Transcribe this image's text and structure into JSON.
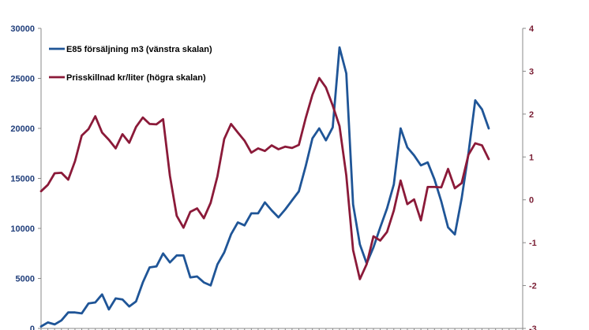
{
  "chart_data": {
    "type": "line",
    "legend_position": "top-left",
    "grid": false,
    "colors": {
      "left_series": "#1f5597",
      "right_series": "#8b1a39",
      "axis": "#888888"
    },
    "y_left": {
      "min": 0,
      "max": 30000,
      "ticks": [
        "0",
        "5000",
        "10000",
        "15000",
        "20000",
        "25000",
        "30000"
      ]
    },
    "y_right": {
      "min": -3,
      "max": 4,
      "ticks": [
        "-3",
        "-2",
        "-1",
        "0",
        "1",
        "2",
        "3",
        "4"
      ]
    },
    "x_count": 72,
    "series": [
      {
        "name": "E85 försäljning m3 (vänstra skalan)",
        "axis": "left",
        "values": [
          200,
          600,
          400,
          800,
          1600,
          1600,
          1500,
          2500,
          2600,
          3400,
          1900,
          3000,
          2900,
          2200,
          2700,
          4600,
          6100,
          6200,
          7500,
          6600,
          7300,
          7300,
          5100,
          5200,
          4600,
          4300,
          6400,
          7600,
          9400,
          10600,
          10300,
          11500,
          11500,
          12600,
          11800,
          11100,
          11900,
          12800,
          13700,
          16200,
          19000,
          20000,
          18800,
          20100,
          28100,
          25500,
          12400,
          8400,
          6500,
          8100,
          10100,
          12000,
          14400,
          20000,
          18100,
          17300,
          16300,
          16600,
          14900,
          12700,
          10100,
          9400,
          13000,
          17500,
          22800,
          21900,
          20000
        ]
      },
      {
        "name": "Prisskillnad kr/liter (högra skalan)",
        "axis": "right",
        "values": [
          0.2,
          0.35,
          0.62,
          0.63,
          0.47,
          0.9,
          1.5,
          1.65,
          1.95,
          1.57,
          1.4,
          1.2,
          1.53,
          1.33,
          1.7,
          1.92,
          1.77,
          1.76,
          1.88,
          0.56,
          -0.37,
          -0.65,
          -0.28,
          -0.2,
          -0.43,
          -0.07,
          0.55,
          1.42,
          1.77,
          1.57,
          1.38,
          1.1,
          1.2,
          1.14,
          1.27,
          1.18,
          1.24,
          1.21,
          1.28,
          1.9,
          2.45,
          2.84,
          2.62,
          2.2,
          1.72,
          0.57,
          -1.17,
          -1.85,
          -1.5,
          -0.85,
          -0.95,
          -0.75,
          -0.25,
          0.45,
          -0.1,
          0.01,
          -0.48,
          0.3,
          0.3,
          0.29,
          0.72,
          0.27,
          0.39,
          1.05,
          1.32,
          1.27,
          0.95
        ]
      }
    ]
  }
}
